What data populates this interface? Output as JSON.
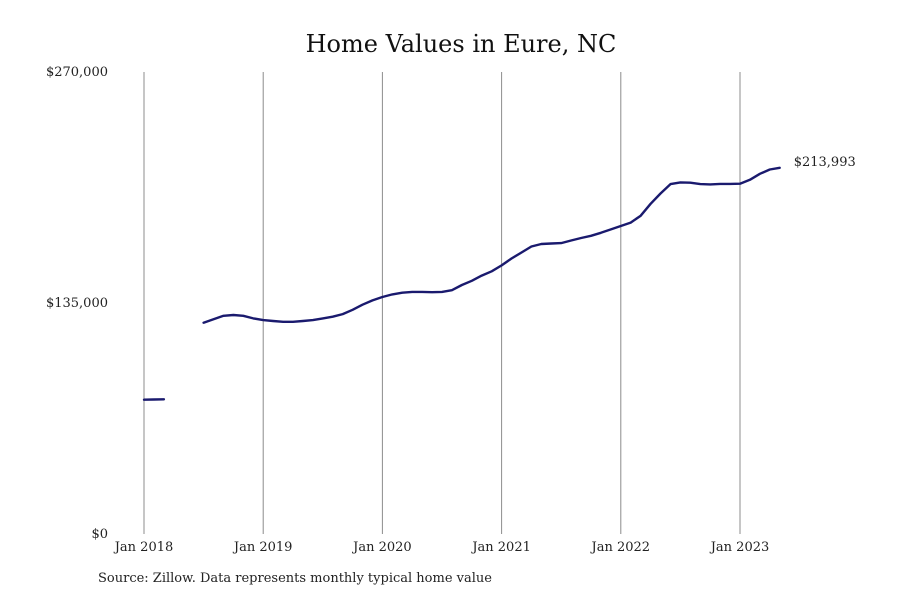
{
  "chart_data": {
    "type": "line",
    "title": "Home Values in Eure, NC",
    "xlabel": "",
    "ylabel": "",
    "ylim": [
      0,
      270000
    ],
    "y_ticks": [
      {
        "value": 0,
        "label": "$0"
      },
      {
        "value": 135000,
        "label": "$135,000"
      },
      {
        "value": 270000,
        "label": "$270,000"
      }
    ],
    "x_ticks": [
      {
        "value": "2018-01",
        "label": "Jan 2018"
      },
      {
        "value": "2019-01",
        "label": "Jan 2019"
      },
      {
        "value": "2020-01",
        "label": "Jan 2020"
      },
      {
        "value": "2021-01",
        "label": "Jan 2021"
      },
      {
        "value": "2022-01",
        "label": "Jan 2022"
      },
      {
        "value": "2023-01",
        "label": "Jan 2023"
      }
    ],
    "grid": "vertical",
    "line_color": "#1a1a6e",
    "end_label": "$213,993",
    "series": [
      {
        "segments": [
          {
            "x": [
              "2018-01",
              "2018-02",
              "2018-03"
            ],
            "y": [
              78500,
              78600,
              78700
            ]
          },
          {
            "x": [
              "2018-07",
              "2018-08",
              "2018-09",
              "2018-10",
              "2018-11",
              "2018-12",
              "2019-01",
              "2019-02",
              "2019-03",
              "2019-04",
              "2019-05",
              "2019-06",
              "2019-07",
              "2019-08",
              "2019-09",
              "2019-10",
              "2019-11",
              "2019-12",
              "2020-01",
              "2020-02",
              "2020-03",
              "2020-04",
              "2020-05",
              "2020-06",
              "2020-07",
              "2020-08",
              "2020-09",
              "2020-10",
              "2020-11",
              "2020-12",
              "2021-01",
              "2021-02",
              "2021-03",
              "2021-04",
              "2021-05",
              "2021-06",
              "2021-07",
              "2021-08",
              "2021-09",
              "2021-10",
              "2021-11",
              "2021-12",
              "2022-01",
              "2022-02",
              "2022-03",
              "2022-04",
              "2022-05",
              "2022-06",
              "2022-07",
              "2022-08",
              "2022-09",
              "2022-10",
              "2022-11",
              "2022-12",
              "2023-01",
              "2023-02",
              "2023-03",
              "2023-04",
              "2023-05"
            ],
            "y": [
              123500,
              125500,
              127500,
              128000,
              127500,
              126000,
              125000,
              124500,
              124000,
              124000,
              124500,
              125000,
              126000,
              127000,
              128500,
              131000,
              134000,
              136500,
              138500,
              140000,
              141000,
              141500,
              141500,
              141300,
              141500,
              142500,
              145500,
              148000,
              151000,
              153500,
              157000,
              161000,
              164500,
              168000,
              169500,
              169800,
              170000,
              171500,
              173000,
              174300,
              176000,
              178000,
              180000,
              182000,
              186000,
              193000,
              199000,
              204500,
              205500,
              205300,
              204500,
              204300,
              204600,
              204600,
              204700,
              207000,
              210500,
              213000,
              213993
            ]
          }
        ]
      }
    ]
  },
  "source": "Source: Zillow. Data represents monthly typical home value"
}
